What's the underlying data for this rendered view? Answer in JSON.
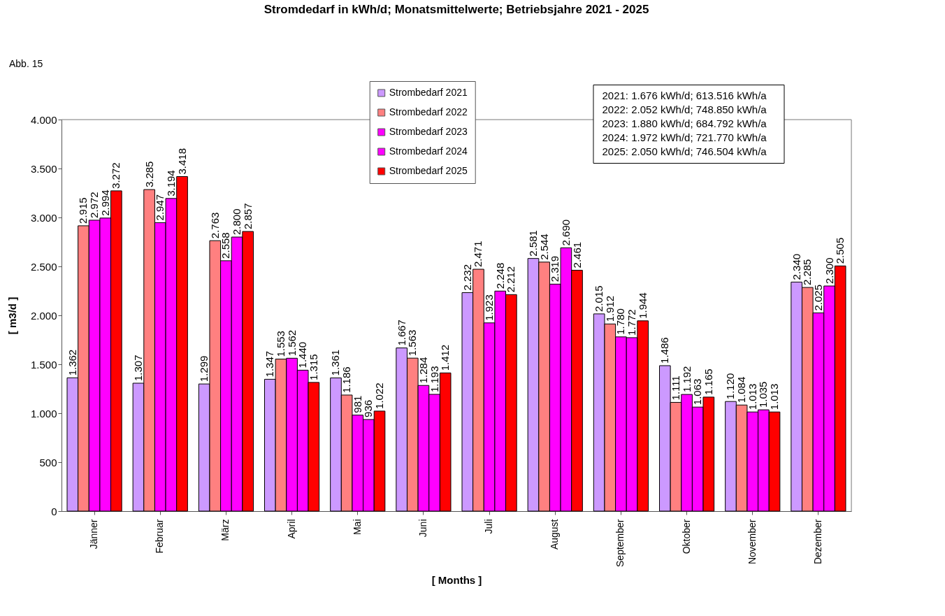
{
  "chart_data": {
    "type": "bar",
    "title": "Stromdedarf in kWh/d; Monatsmittelwerte; Betriebsjahre 2021 - 2025",
    "xlabel": "[ Months ]",
    "ylabel": "[ m3/d ]",
    "categories": [
      "Jänner",
      "Februar",
      "März",
      "April",
      "Mai",
      "Juni",
      "Juli",
      "August",
      "September",
      "Oktober",
      "November",
      "Dezember"
    ],
    "series": [
      {
        "name": "Strombedarf 2021",
        "color": "#cc99ff",
        "values": [
          1362,
          1307,
          1299,
          1347,
          1361,
          1667,
          2232,
          2581,
          2015,
          1486,
          1120,
          2340
        ],
        "value_labels": [
          "1.362",
          "1.307",
          "1.299",
          "1.347",
          "1.361",
          "1.667",
          "2.232",
          "2.581",
          "2.015",
          "1.486",
          "1.120",
          "2.340"
        ]
      },
      {
        "name": "Strombedarf 2022",
        "color": "#ff8080",
        "values": [
          2915,
          3285,
          2763,
          1553,
          1186,
          1563,
          2471,
          2544,
          1912,
          1111,
          1084,
          2285
        ],
        "value_labels": [
          "2.915",
          "3.285",
          "2.763",
          "1.553",
          "1.186",
          "1.563",
          "2.471",
          "2.544",
          "1.912",
          "1.111",
          "1.084",
          "2.285"
        ]
      },
      {
        "name": "Strombedarf 2023",
        "color": "#ff00ff",
        "values": [
          2972,
          2947,
          2558,
          1562,
          981,
          1284,
          1923,
          2319,
          1780,
          1192,
          1013,
          2025
        ],
        "value_labels": [
          "2.972",
          "2.947",
          "2.558",
          "1.562",
          "981",
          "1.284",
          "1.923",
          "2.319",
          "1.780",
          "1.192",
          "1.013",
          "2.025"
        ]
      },
      {
        "name": "Strombedarf 2024",
        "color": "#ff00ff",
        "values": [
          2994,
          3194,
          2800,
          1440,
          936,
          1193,
          2248,
          2690,
          1772,
          1063,
          1035,
          2300
        ],
        "value_labels": [
          "2.994",
          "3.194",
          "2.800",
          "1.440",
          "936",
          "1.193",
          "2.248",
          "2.690",
          "1.772",
          "1.063",
          "1.035",
          "2.300"
        ]
      },
      {
        "name": "Strombedarf 2025",
        "color": "#ff0000",
        "values": [
          3272,
          3418,
          2857,
          1315,
          1022,
          1412,
          2212,
          2461,
          1944,
          1165,
          1013,
          2505
        ],
        "value_labels": [
          "3.272",
          "3.418",
          "2.857",
          "1.315",
          "1.022",
          "1.412",
          "2.212",
          "2.461",
          "1.944",
          "1.165",
          "1.013",
          "2.505"
        ]
      }
    ],
    "ylim": [
      0,
      4000
    ],
    "yticks": [
      0,
      500,
      {
        "value": 1000,
        "label": "1.000"
      },
      {
        "value": 1500,
        "label": "1.500"
      },
      {
        "value": 2000,
        "label": "2.000"
      },
      {
        "value": 2500,
        "label": "2.500"
      },
      {
        "value": 3000,
        "label": "3.000"
      },
      {
        "value": 3500,
        "label": "3.500"
      },
      {
        "value": 4000,
        "label": "4.000"
      }
    ],
    "annotations": [
      "Abb. 15",
      "2021: 1.676 kWh/d;     613.516 kWh/a",
      "2022: 2.052 kWh/d;     748.850 kWh/a",
      "2023: 1.880 kWh/d;     684.792 kWh/a",
      "2024: 1.972 kWh/d;     721.770 kWh/a",
      "2025: 2.050 kWh/d;     746.504 kWh/a"
    ],
    "legend": "top",
    "grid": false
  }
}
